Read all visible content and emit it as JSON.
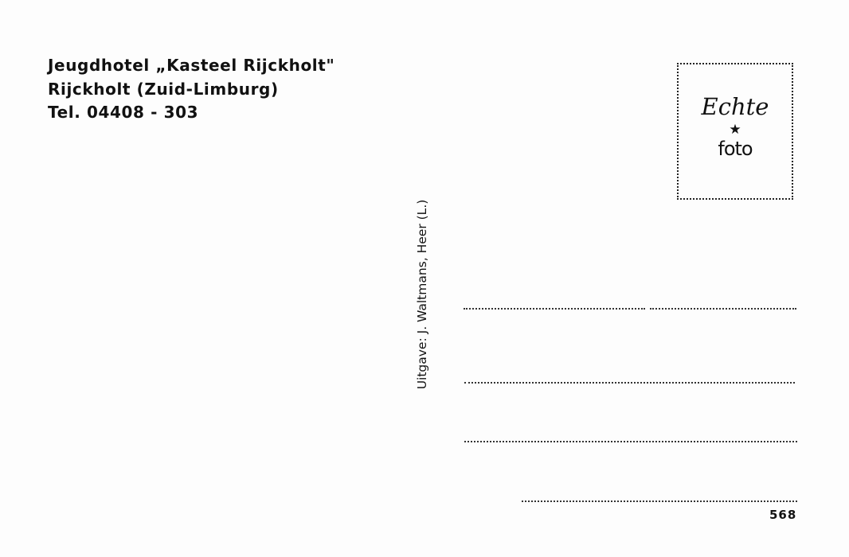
{
  "address": {
    "line1": "Jeugdhotel „Kasteel Rijckholt\"",
    "line2": "Rijckholt (Zuid-Limburg)",
    "line3": "Tel. 04408 - 303"
  },
  "stamp_box": {
    "word1": "Echte",
    "star": "★",
    "word2": "foto"
  },
  "publisher": "Uitgave: J. Waltmans, Heer (L.)",
  "card_number": "568"
}
